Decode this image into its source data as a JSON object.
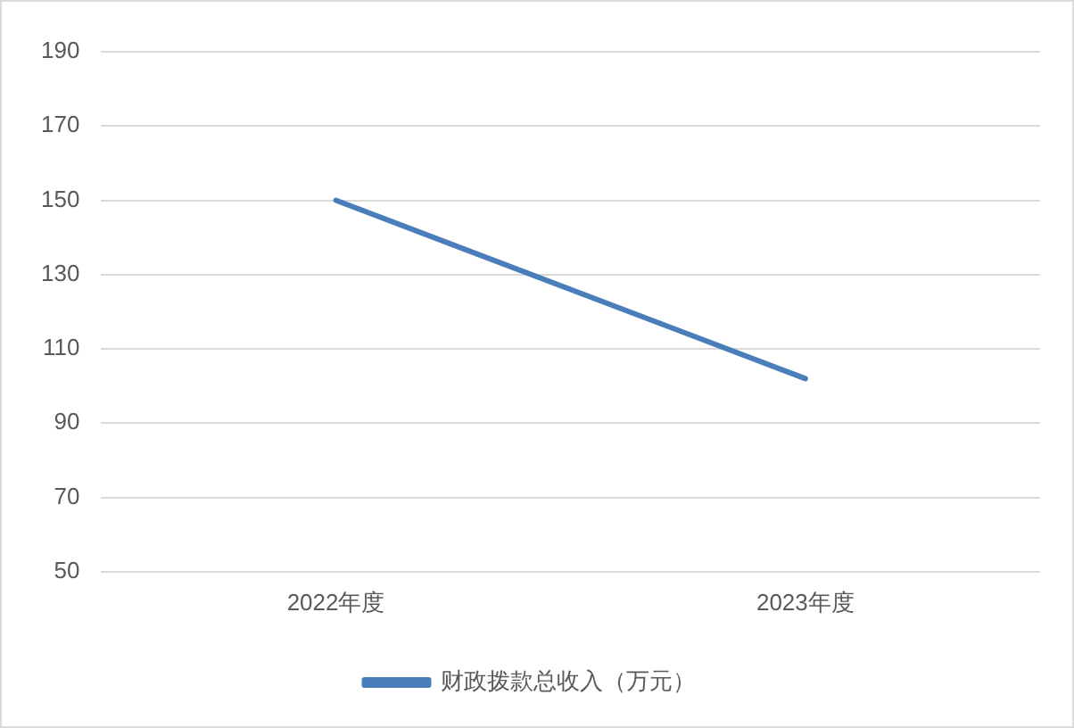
{
  "chart_data": {
    "type": "line",
    "categories": [
      "2022年度",
      "2023年度"
    ],
    "series": [
      {
        "name": "财政拨款总收入（万元）",
        "color": "#4a7ebb",
        "values": [
          150,
          102
        ]
      }
    ],
    "ylim": [
      50,
      190
    ],
    "yticks": [
      50,
      70,
      90,
      110,
      130,
      150,
      170,
      190
    ],
    "grid": "y",
    "legend": "bottom",
    "marker": "none",
    "line_style": "solid"
  }
}
